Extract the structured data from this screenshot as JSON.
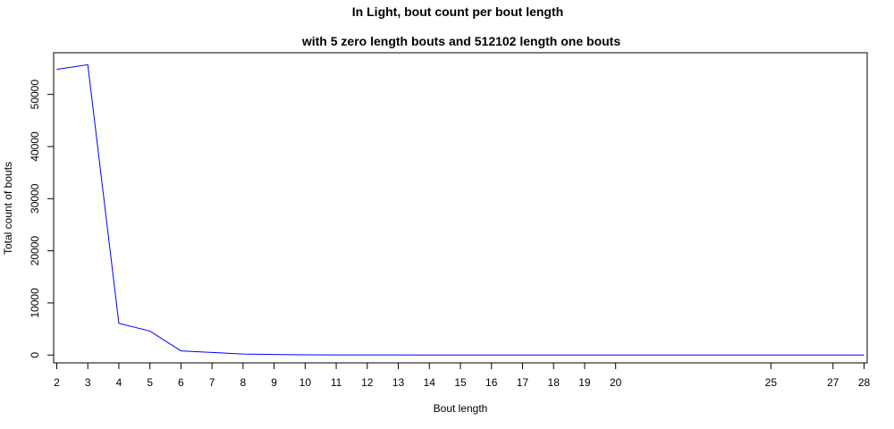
{
  "chart_data": {
    "type": "line",
    "title": "In Light, bout count per bout length",
    "subtitle": "with 5 zero length bouts and 512102 length one bouts",
    "xlabel": "Bout length",
    "ylabel": "Total count of bouts",
    "xlim": [
      1.9,
      28.1
    ],
    "ylim": [
      -1500,
      58000
    ],
    "x_ticks": [
      2,
      3,
      4,
      5,
      6,
      7,
      8,
      9,
      10,
      11,
      12,
      13,
      14,
      15,
      16,
      17,
      18,
      19,
      20,
      25,
      27,
      28
    ],
    "y_ticks": [
      0,
      10000,
      20000,
      30000,
      40000,
      50000
    ],
    "grid": false,
    "series": [
      {
        "color": "#0000ff",
        "x": [
          2,
          3,
          4,
          5,
          6,
          7,
          8,
          9,
          10,
          11,
          12,
          13,
          14,
          15,
          16,
          17,
          18,
          19,
          20,
          25,
          27,
          28
        ],
        "y": [
          54800,
          55700,
          6100,
          4600,
          800,
          500,
          200,
          100,
          50,
          30,
          20,
          15,
          10,
          8,
          6,
          5,
          4,
          3,
          2,
          1,
          1,
          1
        ]
      }
    ]
  }
}
